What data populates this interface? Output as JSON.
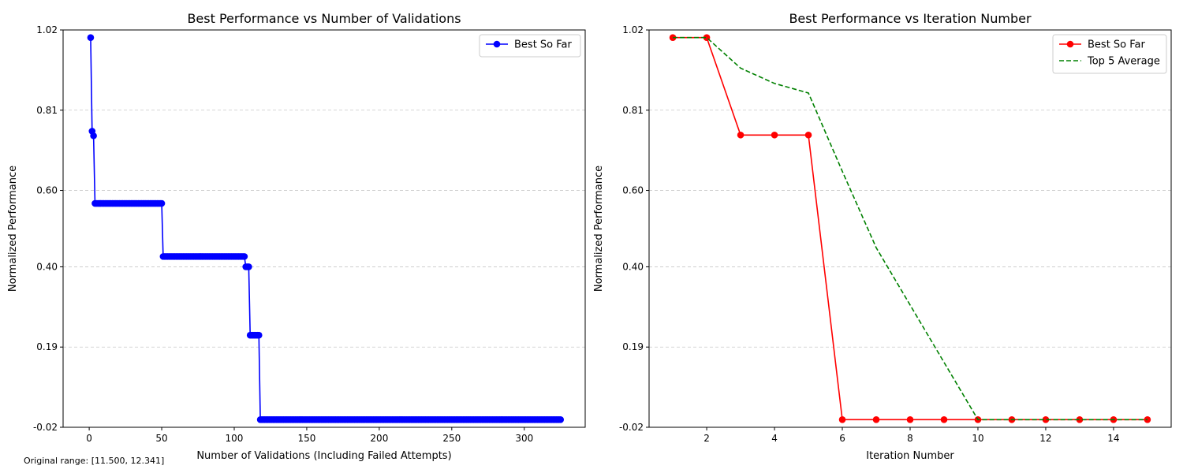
{
  "footnote": "Original range: [11.500, 12.341]",
  "chart_data": [
    {
      "type": "line",
      "title": "Best Performance vs Number of Validations",
      "xlabel": "Number of Validations (Including Failed Attempts)",
      "ylabel": "Normalized Performance",
      "xlim": [
        -18,
        342
      ],
      "ylim": [
        -0.02,
        1.02
      ],
      "xticks": [
        0,
        50,
        100,
        150,
        200,
        250,
        300
      ],
      "yticks": [
        -0.02,
        0.19,
        0.4,
        0.6,
        0.81,
        1.02
      ],
      "ytick_labels": [
        "-0.02",
        "0.19",
        "0.40",
        "0.60",
        "0.81",
        "1.02"
      ],
      "grid": "y-dashed",
      "legend_position": "top-right",
      "series": [
        {
          "name": "Best So Far",
          "color": "#0000ff",
          "marker": "circle",
          "dash": "solid",
          "segments": [
            {
              "from": 1,
              "to": 1,
              "value": 1.0
            },
            {
              "from": 2,
              "to": 2,
              "value": 0.755
            },
            {
              "from": 3,
              "to": 3,
              "value": 0.743
            },
            {
              "from": 4,
              "to": 50,
              "value": 0.566
            },
            {
              "from": 51,
              "to": 107,
              "value": 0.427
            },
            {
              "from": 108,
              "to": 110,
              "value": 0.4
            },
            {
              "from": 111,
              "to": 117,
              "value": 0.221
            },
            {
              "from": 118,
              "to": 325,
              "value": 0.0
            }
          ]
        }
      ]
    },
    {
      "type": "line",
      "title": "Best Performance vs Iteration Number",
      "xlabel": "Iteration Number",
      "ylabel": "Normalized Performance",
      "xlim": [
        0.3,
        15.7
      ],
      "ylim": [
        -0.02,
        1.02
      ],
      "xticks": [
        2,
        4,
        6,
        8,
        10,
        12,
        14
      ],
      "yticks": [
        -0.02,
        0.19,
        0.4,
        0.6,
        0.81,
        1.02
      ],
      "ytick_labels": [
        "-0.02",
        "0.19",
        "0.40",
        "0.60",
        "0.81",
        "1.02"
      ],
      "grid": "y-dashed",
      "legend_position": "top-right",
      "x": [
        1,
        2,
        3,
        4,
        5,
        6,
        7,
        8,
        9,
        10,
        11,
        12,
        13,
        14,
        15
      ],
      "series": [
        {
          "name": "Best So Far",
          "color": "#ff0000",
          "marker": "circle",
          "dash": "solid",
          "values": [
            1.0,
            1.0,
            0.745,
            0.745,
            0.745,
            0.0,
            0.0,
            0.0,
            0.0,
            0.0,
            0.0,
            0.0,
            0.0,
            0.0,
            0.0
          ]
        },
        {
          "name": "Top 5 Average",
          "color": "#008000",
          "marker": "none",
          "dash": "dashed",
          "values": [
            1.0,
            1.0,
            0.92,
            0.88,
            0.855,
            0.65,
            0.45,
            0.3,
            0.15,
            0.0,
            0.0,
            0.0,
            0.0,
            0.0,
            0.0
          ]
        }
      ]
    }
  ]
}
